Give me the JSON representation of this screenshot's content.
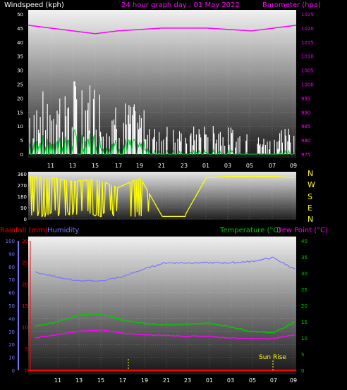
{
  "header": {
    "left_label": "Windspeed (kph)",
    "center_label": "24 hour graph day : 01 May 2022",
    "right_label": "Barometer (hpa)"
  },
  "colors": {
    "wind": "#ffffff",
    "gust_green": "#00cc33",
    "barometer": "#ff00ff",
    "direction": "#ffff00",
    "humidity": "#7777ff",
    "temperature": "#00cc00",
    "dewpoint": "#ff00ff",
    "rain": "#ff0000",
    "grid": "#ffffff"
  },
  "x_ticks": [
    "11",
    "13",
    "15",
    "17",
    "19",
    "21",
    "23",
    "01",
    "03",
    "05",
    "07",
    "09"
  ],
  "x_ticks_bottom": [
    "11",
    "13",
    "15",
    "17",
    "19",
    "21",
    "23",
    "01",
    "03",
    "05",
    "07",
    "09"
  ],
  "compass": [
    "N",
    "W",
    "S",
    "E",
    "N"
  ],
  "sunrise_label": "Sun Rise",
  "lower_header": {
    "rainfall": "Rainfall (mm)",
    "humidity": "Humidity",
    "temperature": "Temperature (°C)",
    "dewpoint": "Dew Point (°C)"
  },
  "chart_data": [
    {
      "type": "line",
      "ylabel": "Windspeed (kph)",
      "y2label": "Barometer (hpa)",
      "ylim": [
        0,
        50
      ],
      "y_ticks": [
        0,
        5,
        10,
        15,
        20,
        25,
        30,
        35,
        40,
        45,
        50
      ],
      "y2lim": [
        975,
        1025
      ],
      "y2_ticks": [
        975,
        980,
        985,
        990,
        995,
        1000,
        1005,
        1010,
        1015,
        1020,
        1025
      ],
      "x": [
        "09:00",
        "11:00",
        "13:00",
        "15:00",
        "17:00",
        "19:00",
        "21:00",
        "23:00",
        "01:00",
        "03:00",
        "05:00",
        "07:00",
        "09:00"
      ],
      "series": [
        {
          "name": "Barometer (hpa)",
          "axis": "right",
          "values": [
            1021,
            1020,
            1019,
            1018,
            1019,
            1019.5,
            1020,
            1020,
            1020,
            1019.5,
            1019,
            1020,
            1021
          ]
        },
        {
          "name": "Windspeed (kph)",
          "axis": "left",
          "values": [
            14,
            18,
            22,
            18,
            15,
            12,
            8,
            6,
            9,
            7,
            5,
            4,
            12
          ]
        }
      ]
    },
    {
      "type": "scatter",
      "ylabel": "Wind direction",
      "ylim": [
        0,
        360
      ],
      "y_ticks": [
        0,
        90,
        180,
        270,
        360
      ],
      "x": [
        "09:00",
        "11:00",
        "13:00",
        "15:00",
        "17:00",
        "19:00",
        "21:00",
        "23:00",
        "01:00",
        "03:00",
        "05:00",
        "07:00",
        "09:00"
      ],
      "series": [
        {
          "name": "Wind direction",
          "values": [
            340,
            330,
            300,
            320,
            250,
            330,
            20,
            20,
            330,
            340,
            340,
            340,
            330
          ]
        }
      ]
    },
    {
      "type": "line",
      "ylim": [
        0,
        100
      ],
      "y_ticks": [
        0,
        10,
        20,
        30,
        40,
        50,
        60,
        70,
        80,
        90,
        100
      ],
      "y_rain_lim": [
        0,
        30
      ],
      "y_rain_ticks": [
        0,
        5,
        10,
        15,
        20,
        25,
        30
      ],
      "y2lim": [
        0,
        40
      ],
      "y2_ticks": [
        0,
        5,
        10,
        15,
        20,
        25,
        30,
        35,
        40
      ],
      "x": [
        "09:00",
        "11:00",
        "13:00",
        "15:00",
        "17:00",
        "19:00",
        "21:00",
        "23:00",
        "01:00",
        "03:00",
        "05:00",
        "07:00",
        "09:00"
      ],
      "series": [
        {
          "name": "Humidity",
          "axis": "left",
          "values": [
            76,
            72,
            69,
            69,
            72,
            78,
            83,
            83,
            83,
            83,
            84,
            87,
            78
          ]
        },
        {
          "name": "Temperature (°C)",
          "axis": "right",
          "values": [
            13.5,
            15,
            17,
            17.5,
            15.5,
            14.5,
            14,
            14.2,
            14.5,
            13.5,
            12,
            11.5,
            15
          ]
        },
        {
          "name": "Dew Point (°C)",
          "axis": "right",
          "values": [
            10,
            11,
            12,
            12.5,
            11.5,
            11,
            10.8,
            10.5,
            10.5,
            10,
            9.8,
            9.8,
            11
          ]
        },
        {
          "name": "Rainfall (mm)",
          "axis": "rain",
          "values": [
            0,
            0,
            0,
            0,
            0,
            0,
            0,
            0,
            0,
            0,
            0,
            0,
            0
          ]
        }
      ]
    }
  ]
}
